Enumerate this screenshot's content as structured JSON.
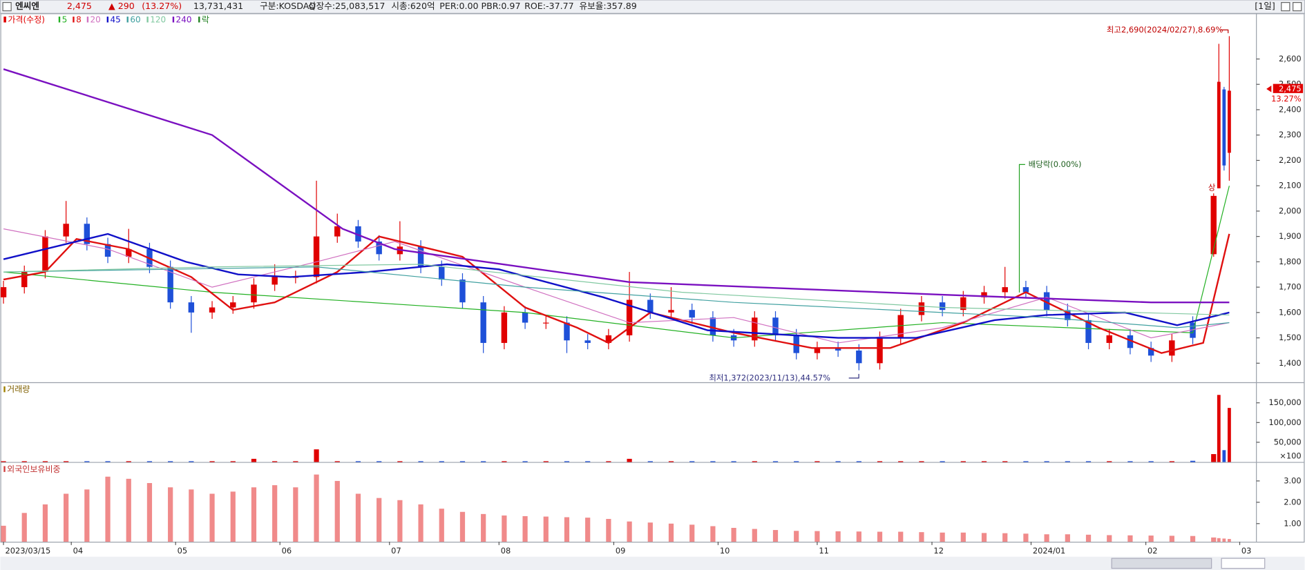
{
  "header": {
    "name": "엔씨엔",
    "price": "2,475",
    "change": "▲ 290",
    "change_pct": "(13.27%)",
    "volume": "13,731,431",
    "items": [
      "구분:KOSDAQ",
      "상장수:25,083,517",
      "시총:620억",
      "PER:0.00",
      "PBR:0.97",
      "ROE:-37.77",
      "유보율:357.89"
    ],
    "period": "[1일]"
  },
  "chart_data": [
    {
      "type": "candlestick",
      "legend_title": "가격(수정)",
      "legend_extra": "락",
      "up_color": "#e00000",
      "down_color": "#1e50d8",
      "xlim": [
        -0.6,
        240.2
      ],
      "xticks": [
        {
          "value": 0,
          "label": "2023/03/15"
        },
        {
          "value": 13,
          "label": "04"
        },
        {
          "value": 33,
          "label": "05"
        },
        {
          "value": 53,
          "label": "06"
        },
        {
          "value": 74,
          "label": "07"
        },
        {
          "value": 95,
          "label": "08"
        },
        {
          "value": 117,
          "label": "09"
        },
        {
          "value": 137,
          "label": "10"
        },
        {
          "value": 156,
          "label": "11"
        },
        {
          "value": 178,
          "label": "12"
        },
        {
          "value": 197,
          "label": "2024/01"
        },
        {
          "value": 219,
          "label": "02"
        },
        {
          "value": 237,
          "label": "03"
        }
      ],
      "ylim": [
        1325,
        2777
      ],
      "yticks": [
        {
          "value": 1400,
          "label": "1,400"
        },
        {
          "value": 1500,
          "label": "1,500"
        },
        {
          "value": 1600,
          "label": "1,600"
        },
        {
          "value": 1700,
          "label": "1,700"
        },
        {
          "value": 1800,
          "label": "1,800"
        },
        {
          "value": 1900,
          "label": "1,900"
        },
        {
          "value": 2000,
          "label": "2,000"
        },
        {
          "value": 2100,
          "label": "2,100"
        },
        {
          "value": 2200,
          "label": "2,200"
        },
        {
          "value": 2300,
          "label": "2,300"
        },
        {
          "value": 2400,
          "label": "2,400"
        },
        {
          "value": 2500,
          "label": "2,500"
        },
        {
          "value": 2600,
          "label": "2,600"
        }
      ],
      "candles": {
        "x": [
          0,
          4,
          8,
          12,
          16,
          20,
          24,
          28,
          32,
          36,
          40,
          44,
          48,
          52,
          56,
          60,
          64,
          68,
          72,
          76,
          80,
          84,
          88,
          92,
          96,
          100,
          104,
          108,
          112,
          116,
          120,
          124,
          128,
          132,
          136,
          140,
          144,
          148,
          152,
          156,
          160,
          164,
          168,
          172,
          176,
          180,
          184,
          188,
          192,
          196,
          200,
          204,
          208,
          212,
          216,
          220,
          224,
          228,
          232,
          233,
          234,
          235
        ],
        "open": [
          1660,
          1700,
          1760,
          1900,
          1950,
          1870,
          1820,
          1850,
          1780,
          1640,
          1600,
          1620,
          1640,
          1710,
          1740,
          1740,
          1900,
          1940,
          1880,
          1830,
          1860,
          1780,
          1730,
          1640,
          1480,
          1600,
          1560,
          1560,
          1490,
          1480,
          1510,
          1650,
          1600,
          1610,
          1580,
          1510,
          1490,
          1580,
          1510,
          1440,
          1460,
          1450,
          1400,
          1500,
          1590,
          1640,
          1610,
          1660,
          1680,
          1700,
          1680,
          1610,
          1570,
          1480,
          1510,
          1460,
          1430,
          1560,
          1830,
          2090,
          2480,
          2230
        ],
        "high": [
          1725,
          1785,
          1925,
          2040,
          1975,
          1895,
          1930,
          1875,
          1805,
          1665,
          1645,
          1665,
          1735,
          1790,
          1765,
          2120,
          1990,
          1965,
          1905,
          1960,
          1885,
          1805,
          1755,
          1665,
          1625,
          1625,
          1585,
          1585,
          1515,
          1535,
          1760,
          1675,
          1700,
          1635,
          1605,
          1535,
          1605,
          1605,
          1535,
          1485,
          1485,
          1475,
          1525,
          1615,
          1665,
          1665,
          1685,
          1705,
          1780,
          1725,
          1705,
          1635,
          1595,
          1535,
          1535,
          1485,
          1515,
          1585,
          2070,
          2660,
          2490,
          2690
        ],
        "low": [
          1635,
          1675,
          1735,
          1875,
          1845,
          1795,
          1795,
          1755,
          1615,
          1520,
          1575,
          1595,
          1615,
          1685,
          1715,
          1715,
          1875,
          1855,
          1805,
          1805,
          1755,
          1705,
          1615,
          1440,
          1455,
          1535,
          1535,
          1440,
          1455,
          1455,
          1485,
          1575,
          1575,
          1555,
          1485,
          1465,
          1465,
          1485,
          1415,
          1415,
          1425,
          1372,
          1375,
          1475,
          1565,
          1585,
          1585,
          1635,
          1655,
          1655,
          1585,
          1545,
          1455,
          1455,
          1435,
          1405,
          1405,
          1475,
          1820,
          2090,
          2160,
          2120
        ],
        "close": [
          1700,
          1760,
          1900,
          1950,
          1870,
          1820,
          1850,
          1780,
          1640,
          1600,
          1620,
          1640,
          1710,
          1740,
          1740,
          1900,
          1940,
          1880,
          1830,
          1860,
          1780,
          1730,
          1640,
          1480,
          1600,
          1560,
          1560,
          1490,
          1480,
          1510,
          1650,
          1600,
          1610,
          1580,
          1510,
          1490,
          1580,
          1510,
          1440,
          1460,
          1450,
          1400,
          1500,
          1590,
          1640,
          1610,
          1660,
          1680,
          1700,
          1680,
          1610,
          1570,
          1480,
          1510,
          1460,
          1430,
          1490,
          1500,
          2060,
          2510,
          2180,
          2475
        ]
      },
      "series": [
        {
          "name": "5",
          "color": "#22b022",
          "width": 1,
          "x": [
            0,
            40,
            100,
            140,
            180,
            228,
            235
          ],
          "values": [
            1760,
            1680,
            1600,
            1500,
            1560,
            1520,
            2100
          ]
        },
        {
          "name": "8",
          "color": "#e01010",
          "width": 2,
          "x": [
            0,
            8,
            14,
            24,
            36,
            44,
            52,
            64,
            72,
            88,
            100,
            110,
            116,
            124,
            140,
            155,
            170,
            184,
            196,
            210,
            222,
            230,
            235
          ],
          "values": [
            1730,
            1760,
            1890,
            1850,
            1740,
            1610,
            1640,
            1760,
            1900,
            1820,
            1620,
            1540,
            1480,
            1600,
            1520,
            1460,
            1460,
            1560,
            1680,
            1540,
            1440,
            1480,
            1910
          ]
        },
        {
          "name": "20",
          "color": "#d070c0",
          "width": 1,
          "x": [
            0,
            20,
            40,
            60,
            75,
            100,
            120,
            140,
            160,
            180,
            200,
            220,
            235
          ],
          "values": [
            1930,
            1850,
            1700,
            1800,
            1880,
            1700,
            1560,
            1580,
            1480,
            1540,
            1660,
            1500,
            1560
          ]
        },
        {
          "name": "45",
          "color": "#1010c8",
          "width": 2,
          "x": [
            0,
            20,
            35,
            45,
            55,
            70,
            85,
            95,
            115,
            135,
            160,
            175,
            190,
            200,
            215,
            225,
            235
          ],
          "values": [
            1810,
            1910,
            1800,
            1750,
            1740,
            1760,
            1790,
            1770,
            1660,
            1530,
            1500,
            1500,
            1570,
            1590,
            1600,
            1550,
            1600
          ]
        },
        {
          "name": "60",
          "color": "#40a0a0",
          "width": 1,
          "x": [
            0,
            60,
            100,
            140,
            180,
            200,
            225,
            235
          ],
          "values": [
            1760,
            1780,
            1700,
            1640,
            1600,
            1580,
            1540,
            1560
          ]
        },
        {
          "name": "120",
          "color": "#80c8a0",
          "width": 1,
          "x": [
            0,
            40,
            80,
            130,
            180,
            235
          ],
          "values": [
            1760,
            1780,
            1790,
            1680,
            1620,
            1590
          ]
        },
        {
          "name": "240",
          "color": "#7a10c0",
          "width": 2,
          "x": [
            0,
            40,
            65,
            75,
            120,
            180,
            220,
            235
          ],
          "values": [
            2560,
            2300,
            1930,
            1850,
            1720,
            1670,
            1640,
            1640
          ]
        }
      ],
      "annotations": [
        "최고2,690(2024/02/27),8.69%",
        "최저1,372(2023/11/13),44.57%",
        "배당락(0.00%)",
        "상"
      ],
      "last_price_label": "2,475",
      "last_change_label": "13.27%"
    },
    {
      "type": "bar",
      "title": "거래량",
      "unit": "×100",
      "color": "#e00000",
      "ylim": [
        0,
        198000
      ],
      "yticks": [
        {
          "value": 150000,
          "label": "150,000"
        },
        {
          "value": 100000,
          "label": "100,000"
        },
        {
          "value": 50000,
          "label": "50,000"
        }
      ],
      "values": [
        2000,
        2000,
        2000,
        2000,
        2000,
        2000,
        2000,
        2000,
        2000,
        2000,
        2000,
        2000,
        8000,
        2000,
        2000,
        32000,
        2000,
        2000,
        2000,
        2000,
        2000,
        2000,
        2000,
        2000,
        2000,
        2000,
        2000,
        2000,
        2000,
        2000,
        8000,
        2000,
        2000,
        2000,
        2000,
        2000,
        2000,
        2000,
        2000,
        2000,
        2000,
        2000,
        2000,
        2000,
        2000,
        2000,
        2000,
        2000,
        2000,
        2000,
        2000,
        2000,
        2000,
        2000,
        2000,
        2000,
        2000,
        3000,
        20000,
        170000,
        30000,
        137000
      ]
    },
    {
      "type": "bar",
      "title": "외국인보유비중",
      "color": "#f08a8a",
      "ylim": [
        0.15,
        3.81
      ],
      "yticks": [
        {
          "value": 3,
          "label": "3.00"
        },
        {
          "value": 2,
          "label": "2.00"
        },
        {
          "value": 1,
          "label": "1.00"
        }
      ],
      "values": [
        0.9,
        1.5,
        1.9,
        2.4,
        2.6,
        3.2,
        3.1,
        2.9,
        2.7,
        2.6,
        2.4,
        2.5,
        2.7,
        2.8,
        2.7,
        3.3,
        3.0,
        2.4,
        2.2,
        2.1,
        1.9,
        1.7,
        1.55,
        1.45,
        1.38,
        1.35,
        1.33,
        1.3,
        1.28,
        1.22,
        1.1,
        1.05,
        1.0,
        0.95,
        0.88,
        0.8,
        0.75,
        0.7,
        0.66,
        0.65,
        0.64,
        0.63,
        0.62,
        0.62,
        0.6,
        0.58,
        0.58,
        0.56,
        0.55,
        0.53,
        0.5,
        0.5,
        0.48,
        0.46,
        0.45,
        0.44,
        0.43,
        0.42,
        0.35,
        0.32,
        0.3,
        0.28
      ]
    }
  ]
}
